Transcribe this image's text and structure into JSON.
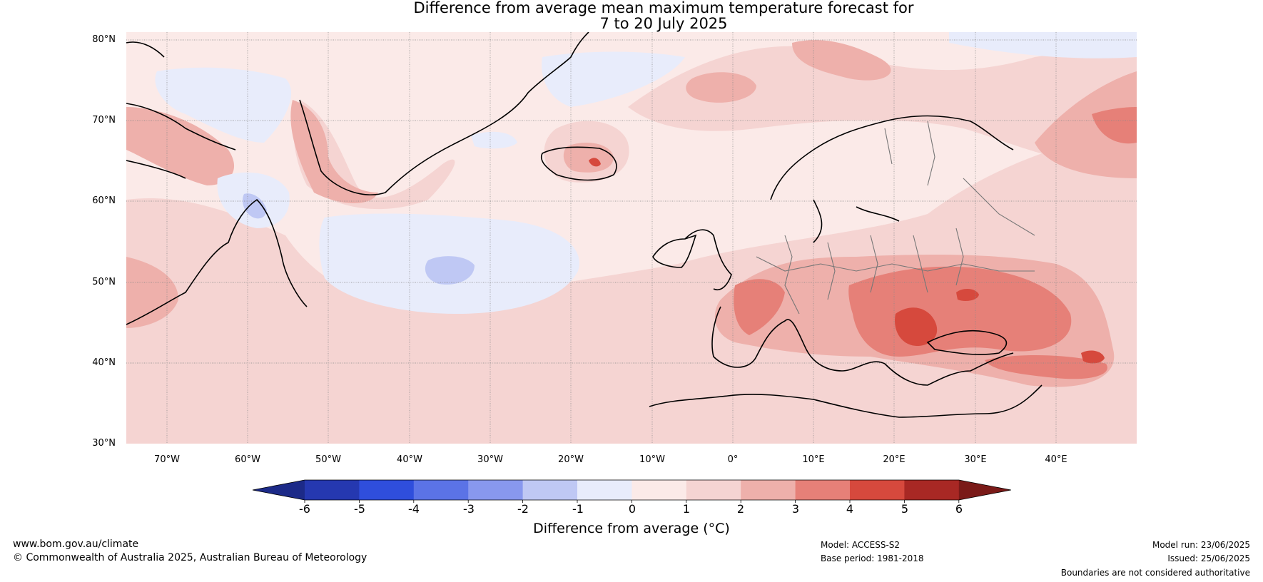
{
  "title": {
    "line1": "Difference from average mean maximum temperature forecast for",
    "line2": "7 to 20 July 2025"
  },
  "map": {
    "lat_labels": [
      "80°N",
      "70°N",
      "60°N",
      "50°N",
      "40°N",
      "30°N"
    ],
    "lon_labels": [
      "70°W",
      "60°W",
      "50°W",
      "40°W",
      "30°W",
      "20°W",
      "10°W",
      "0°",
      "10°E",
      "20°E",
      "30°E",
      "40°E"
    ],
    "extent": {
      "lon_min": -75,
      "lon_max": 50,
      "lat_min": 30,
      "lat_max": 81
    }
  },
  "colorbar": {
    "ticks": [
      "-6",
      "-5",
      "-4",
      "-3",
      "-2",
      "-1",
      "0",
      "1",
      "2",
      "3",
      "4",
      "5",
      "6"
    ],
    "colors": [
      "#1c2a88",
      "#2538b0",
      "#2f4edc",
      "#5b73e6",
      "#8898ee",
      "#bfc8f4",
      "#e8ecfb",
      "#fbeae8",
      "#f5d4d2",
      "#eeb0ab",
      "#e68078",
      "#d6493d",
      "#a82824",
      "#7a1a18"
    ],
    "label": "Difference from average (°C)"
  },
  "footer": {
    "website": "www.bom.gov.au/climate",
    "copyright": "© Commonwealth of Australia 2025, Australian Bureau of Meteorology",
    "model": "Model: ACCESS-S2",
    "base_period": "Base period: 1981-2018",
    "model_run": "Model run: 23/06/2025",
    "issued": "Issued: 25/06/2025",
    "disclaimer": "Boundaries are not considered authoritative"
  }
}
